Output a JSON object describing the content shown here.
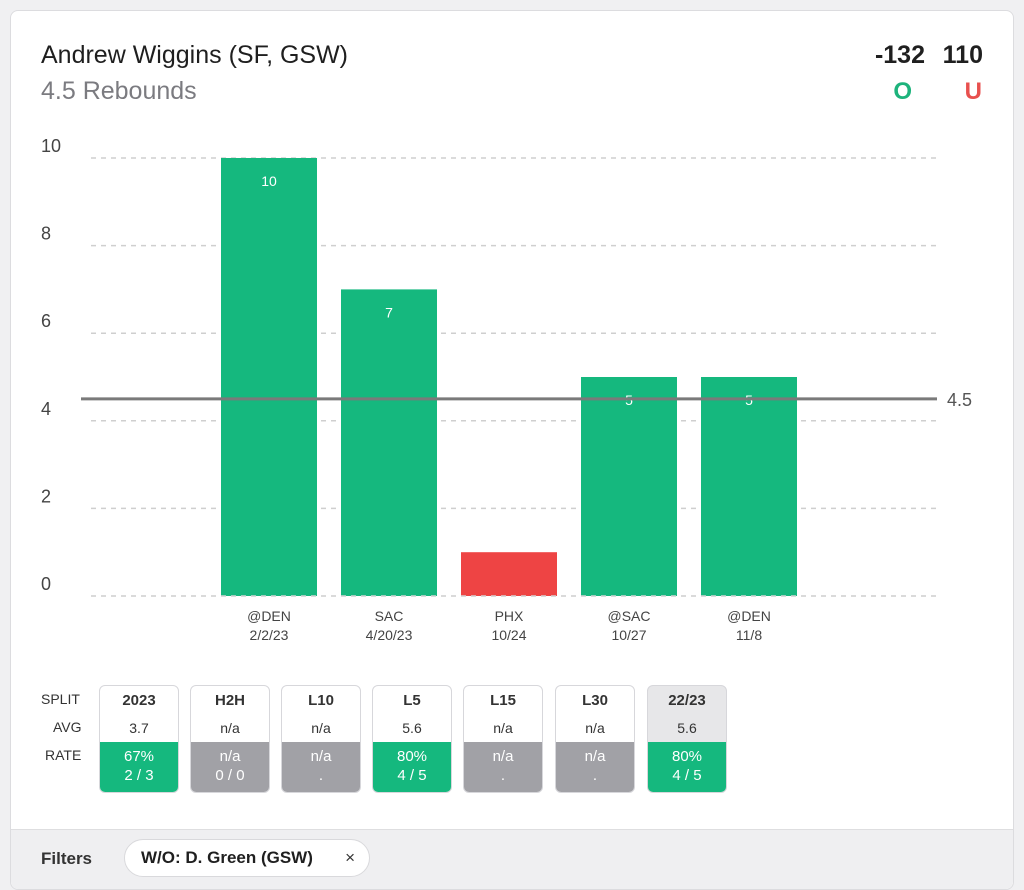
{
  "header": {
    "player": "Andrew Wiggins (SF, GSW)",
    "prop": "4.5 Rebounds",
    "over_odds": "-132",
    "under_odds": "110",
    "over_label": "O",
    "under_label": "U"
  },
  "chart_data": {
    "type": "bar",
    "categories": [
      "@DEN",
      "SAC",
      "PHX",
      "@SAC",
      "@DEN"
    ],
    "dates": [
      "2/2/23",
      "4/20/23",
      "10/24",
      "10/27",
      "11/8"
    ],
    "values": [
      10,
      7,
      1,
      5,
      5
    ],
    "value_labels": [
      "10",
      "7",
      "",
      "5",
      "5"
    ],
    "ylim": [
      0,
      10
    ],
    "yticks": [
      0,
      2,
      4,
      6,
      8,
      10
    ],
    "threshold": 4.5,
    "threshold_label": "4.5",
    "grid": true,
    "colors": {
      "over": "#15b87e",
      "under": "#ee4444",
      "line": "#7a7a7a"
    }
  },
  "splits": {
    "row_labels": {
      "split": "SPLIT",
      "avg": "AVG",
      "rate": "RATE"
    },
    "columns": [
      {
        "name": "2023",
        "avg": "3.7",
        "pct": "67%",
        "frac": "2 / 3",
        "status": "green"
      },
      {
        "name": "H2H",
        "avg": "n/a",
        "pct": "n/a",
        "frac": "0 / 0",
        "status": "gray"
      },
      {
        "name": "L10",
        "avg": "n/a",
        "pct": "n/a",
        "frac": ".",
        "status": "gray"
      },
      {
        "name": "L5",
        "avg": "5.6",
        "pct": "80%",
        "frac": "4 / 5",
        "status": "green"
      },
      {
        "name": "L15",
        "avg": "n/a",
        "pct": "n/a",
        "frac": ".",
        "status": "gray"
      },
      {
        "name": "L30",
        "avg": "n/a",
        "pct": "n/a",
        "frac": ".",
        "status": "gray"
      },
      {
        "name": "22/23",
        "avg": "5.6",
        "pct": "80%",
        "frac": "4 / 5",
        "status": "green",
        "selected": true
      }
    ]
  },
  "filters": {
    "label": "Filters",
    "chip_label": "W/O: D. Green (GSW)",
    "chip_close": "×"
  }
}
